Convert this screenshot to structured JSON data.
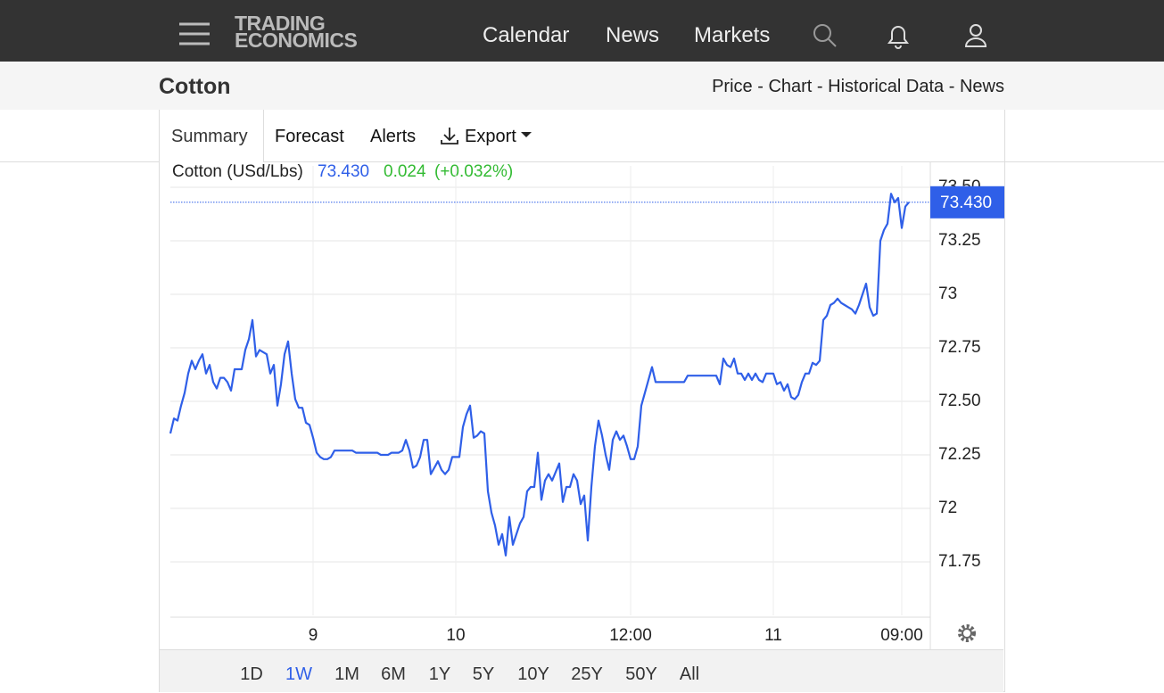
{
  "nav": {
    "logo": [
      "TRADING",
      "ECONOMICS"
    ],
    "links": [
      "Calendar",
      "News",
      "Markets"
    ]
  },
  "header": {
    "title": "Cotton",
    "separator": "-",
    "links": [
      "Price",
      "Chart",
      "Historical Data",
      "News"
    ]
  },
  "tabs": [
    "Summary",
    "Forecast",
    "Alerts",
    "Export"
  ],
  "chart_data": {
    "type": "line",
    "series": [
      {
        "name": "Cotton (USd/Lbs)",
        "color": "#2f5fe8",
        "values": [
          72.35,
          72.42,
          72.41,
          72.48,
          72.54,
          72.63,
          72.69,
          72.65,
          72.69,
          72.72,
          72.63,
          72.67,
          72.59,
          72.56,
          72.61,
          72.61,
          72.59,
          72.55,
          72.65,
          72.65,
          72.65,
          72.74,
          72.79,
          72.88,
          72.71,
          72.74,
          72.73,
          72.72,
          72.63,
          72.67,
          72.48,
          72.58,
          72.72,
          72.78,
          72.63,
          72.51,
          72.47,
          72.47,
          72.4,
          72.39,
          72.33,
          72.26,
          72.24,
          72.23,
          72.23,
          72.24,
          72.27,
          72.27,
          72.27,
          72.27,
          72.27,
          72.27,
          72.26,
          72.26,
          72.26,
          72.26,
          72.26,
          72.26,
          72.26,
          72.25,
          72.25,
          72.25,
          72.26,
          72.26,
          72.26,
          72.27,
          72.32,
          72.27,
          72.19,
          72.2,
          72.24,
          72.32,
          72.32,
          72.16,
          72.19,
          72.22,
          72.18,
          72.16,
          72.18,
          72.24,
          72.24,
          72.24,
          72.38,
          72.44,
          72.48,
          72.33,
          72.34,
          72.36,
          72.35,
          72.08,
          71.98,
          71.92,
          71.83,
          71.88,
          71.78,
          71.96,
          71.83,
          71.88,
          71.93,
          71.96,
          72.08,
          72.1,
          72.1,
          72.26,
          72.04,
          72.13,
          72.16,
          72.13,
          72.17,
          72.21,
          72.03,
          72.1,
          72.1,
          72.16,
          72.13,
          72.02,
          72.06,
          71.85,
          72.1,
          72.29,
          72.41,
          72.34,
          72.25,
          72.18,
          72.32,
          72.36,
          72.32,
          72.34,
          72.29,
          72.23,
          72.23,
          72.29,
          72.48,
          72.54,
          72.6,
          72.66,
          72.59,
          72.59,
          72.59,
          72.59,
          72.59,
          72.59,
          72.59,
          72.59,
          72.59,
          72.62,
          72.62,
          72.62,
          72.62,
          72.62,
          72.62,
          72.62,
          72.62,
          72.62,
          72.58,
          72.7,
          72.67,
          72.66,
          72.7,
          72.63,
          72.63,
          72.6,
          72.63,
          72.6,
          72.63,
          72.6,
          72.59,
          72.63,
          72.63,
          72.63,
          72.58,
          72.59,
          72.55,
          72.58,
          72.52,
          72.51,
          72.53,
          72.59,
          72.63,
          72.63,
          72.68,
          72.67,
          72.69,
          72.88,
          72.9,
          72.95,
          72.96,
          72.98,
          72.96,
          72.95,
          72.94,
          72.93,
          72.91,
          72.95,
          73.0,
          73.05,
          72.94,
          72.9,
          72.91,
          73.25,
          73.3,
          73.33,
          73.47,
          73.43,
          73.45,
          73.31,
          73.41,
          73.43
        ]
      }
    ],
    "last_price": {
      "value": 73.43,
      "label": "73.430"
    },
    "change": 0.024,
    "change_pct": {
      "value": 0.032,
      "label": "(+0.032%)"
    },
    "xlim": [
      0,
      213
    ],
    "xticks": [
      {
        "value": 40,
        "label": "9"
      },
      {
        "value": 80,
        "label": "10"
      },
      {
        "value": 129,
        "label": "12:00"
      },
      {
        "value": 169,
        "label": "11"
      },
      {
        "value": 205,
        "label": "09:00"
      }
    ],
    "ylim": [
      71.5,
      73.6
    ],
    "yticks": [
      71.75,
      72,
      72.25,
      {
        "value": 72.5,
        "label": "72.50"
      },
      72.75,
      73,
      73.25,
      {
        "value": 73.5,
        "label": "73.50"
      }
    ],
    "grid": true
  },
  "timeframes": [
    "1D",
    "1W",
    "1M",
    "6M",
    "1Y",
    "5Y",
    "10Y",
    "25Y",
    "50Y",
    "All"
  ],
  "active_timeframe": 1
}
